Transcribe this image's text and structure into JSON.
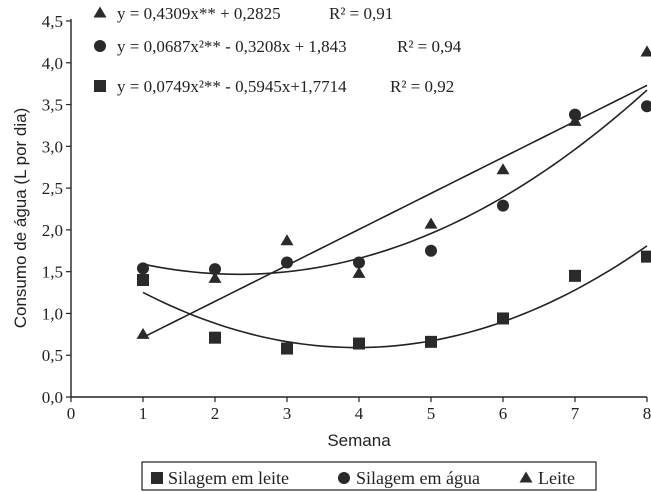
{
  "chart_data": {
    "type": "scatter",
    "xlabel": "Semana",
    "ylabel": "Consumo de água (L por dia)",
    "xlim": [
      0,
      8
    ],
    "ylim": [
      0.0,
      4.5
    ],
    "x_ticks": [
      "0",
      "1",
      "2",
      "3",
      "4",
      "5",
      "6",
      "7",
      "8"
    ],
    "y_ticks": [
      "0,0",
      "0,5",
      "1,0",
      "1,5",
      "2,0",
      "2,5",
      "3,0",
      "3,5",
      "4,0",
      "4,5"
    ],
    "grid": false,
    "legend_position": "bottom",
    "series": [
      {
        "name": "Silagem em leite",
        "marker": "square",
        "x": [
          1,
          2,
          3,
          4,
          5,
          6,
          7,
          8
        ],
        "values": [
          1.4,
          0.71,
          0.58,
          0.64,
          0.66,
          0.94,
          1.45,
          1.68
        ],
        "equation": "y = 0,0749x²** - 0,5945x+1,7714",
        "r2": "R² = 0,92",
        "fit": {
          "a": 0.0749,
          "b": -0.5945,
          "c": 1.7714
        }
      },
      {
        "name": "Silagem em água",
        "marker": "circle",
        "x": [
          1,
          2,
          3,
          4,
          5,
          6,
          7,
          8
        ],
        "values": [
          1.54,
          1.53,
          1.61,
          1.61,
          1.75,
          2.29,
          3.38,
          3.48
        ],
        "equation": "y = 0,0687x²** - 0,3208x + 1,843",
        "r2": "R² = 0,94",
        "fit": {
          "a": 0.0687,
          "b": -0.3208,
          "c": 1.843
        }
      },
      {
        "name": "Leite",
        "marker": "triangle",
        "x": [
          1,
          2,
          3,
          4,
          5,
          6,
          7,
          8
        ],
        "values": [
          0.75,
          1.42,
          1.87,
          1.48,
          2.07,
          2.72,
          3.3,
          4.13
        ],
        "equation": "y = 0,4309x** + 0,2825",
        "r2": "R² = 0,91",
        "fit": {
          "a": 0,
          "b": 0.4309,
          "c": 0.2825
        }
      }
    ]
  }
}
